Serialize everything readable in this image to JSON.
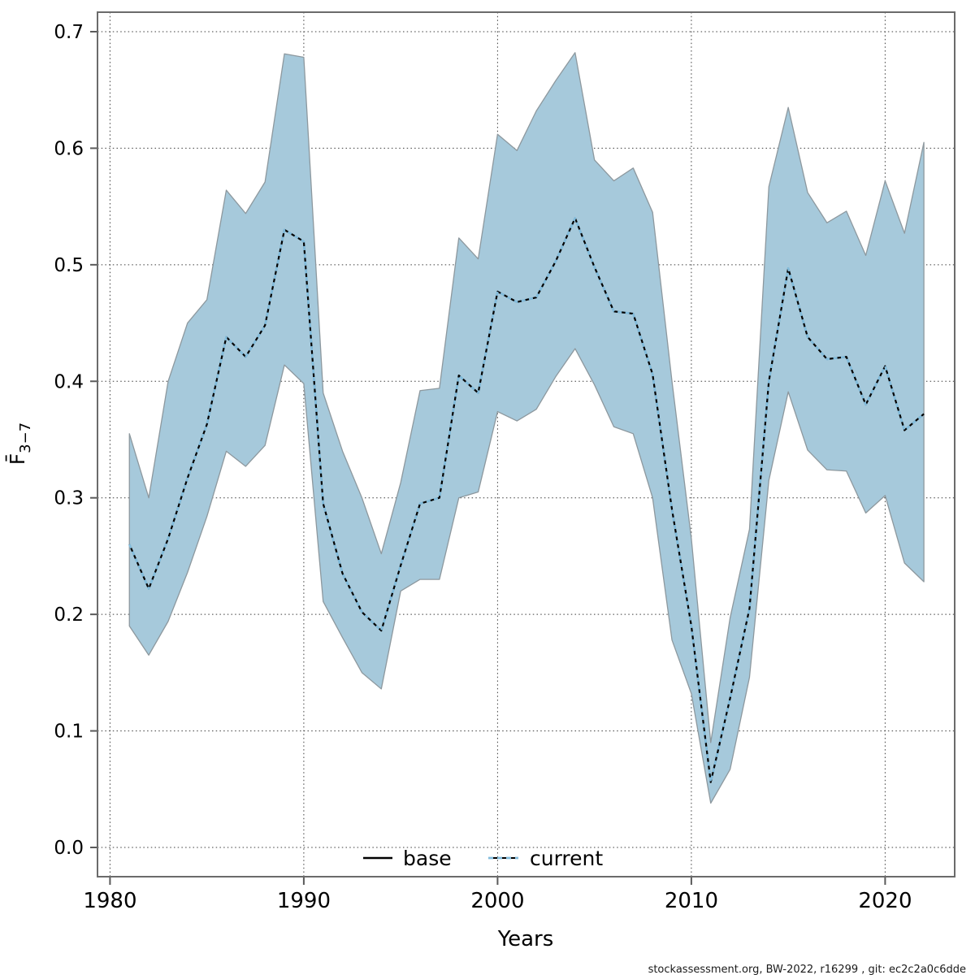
{
  "figure": {
    "footer": "stockassessment.org, BW-2022, r16299 , git: ec2c2a0c6dde",
    "xlabel": "Years",
    "ylabel_main": "F̄",
    "ylabel_sub": "3−7",
    "colors": {
      "band_fill": "#a6c9db",
      "band_edge": "#8d989e",
      "base_line": "#000000",
      "current_line": "#82bcdc",
      "grid": "#3c3c3c",
      "border": "#6b6b6b"
    }
  },
  "chart_data": {
    "type": "line",
    "title": "",
    "xlabel": "Years",
    "ylabel": "F̄3−7",
    "xlim": [
      1979.3,
      2023.6
    ],
    "ylim": [
      0.0,
      0.7
    ],
    "x_ticks": [
      "1980",
      "1990",
      "2000",
      "2010",
      "2020"
    ],
    "x_tick_years": [
      1980,
      1990,
      2000,
      2010,
      2020
    ],
    "y_ticks": [
      "0.0",
      "0.1",
      "0.2",
      "0.3",
      "0.4",
      "0.5",
      "0.6",
      "0.7"
    ],
    "y_tick_values": [
      0.0,
      0.1,
      0.2,
      0.3,
      0.4,
      0.5,
      0.6,
      0.7
    ],
    "grid": "dotted",
    "legend_position": "bottom-center",
    "x": [
      1981,
      1982,
      1983,
      1984,
      1985,
      1986,
      1987,
      1988,
      1989,
      1990,
      1991,
      1992,
      1993,
      1994,
      1995,
      1996,
      1997,
      1998,
      1999,
      2000,
      2001,
      2002,
      2003,
      2004,
      2005,
      2006,
      2007,
      2008,
      2009,
      2010,
      2011,
      2012,
      2013,
      2014,
      2015,
      2016,
      2017,
      2018,
      2019,
      2020,
      2021,
      2022
    ],
    "series": [
      {
        "name": "base",
        "style": "solid",
        "color": "#000000",
        "values": [
          0.26,
          0.222,
          0.265,
          0.317,
          0.363,
          0.438,
          0.421,
          0.448,
          0.53,
          0.52,
          0.295,
          0.235,
          0.202,
          0.186,
          0.242,
          0.295,
          0.3,
          0.405,
          0.39,
          0.477,
          0.468,
          0.472,
          0.503,
          0.54,
          0.498,
          0.46,
          0.458,
          0.406,
          0.29,
          0.19,
          0.056,
          0.128,
          0.205,
          0.4,
          0.497,
          0.438,
          0.419,
          0.421,
          0.38,
          0.413,
          0.358,
          0.372
        ]
      },
      {
        "name": "current",
        "style": "dashed",
        "color": "#82bcdc",
        "values": [
          0.26,
          0.222,
          0.265,
          0.317,
          0.363,
          0.438,
          0.421,
          0.448,
          0.53,
          0.52,
          0.295,
          0.235,
          0.202,
          0.186,
          0.242,
          0.295,
          0.3,
          0.405,
          0.39,
          0.477,
          0.468,
          0.472,
          0.503,
          0.54,
          0.498,
          0.46,
          0.458,
          0.406,
          0.29,
          0.19,
          0.056,
          0.128,
          0.205,
          0.4,
          0.497,
          0.438,
          0.419,
          0.421,
          0.38,
          0.413,
          0.358,
          0.372
        ]
      }
    ],
    "band": {
      "name": "confidence-band",
      "fill": "#a6c9db",
      "edge": "#8d989e",
      "upper": [
        0.355,
        0.3,
        0.4,
        0.45,
        0.47,
        0.564,
        0.544,
        0.571,
        0.681,
        0.678,
        0.39,
        0.34,
        0.3,
        0.252,
        0.313,
        0.392,
        0.394,
        0.523,
        0.505,
        0.612,
        0.598,
        0.632,
        0.658,
        0.682,
        0.59,
        0.572,
        0.583,
        0.545,
        0.4,
        0.265,
        0.09,
        0.197,
        0.273,
        0.567,
        0.635,
        0.562,
        0.536,
        0.546,
        0.508,
        0.572,
        0.527,
        0.605
      ],
      "lower": [
        0.19,
        0.165,
        0.194,
        0.236,
        0.284,
        0.34,
        0.327,
        0.345,
        0.414,
        0.398,
        0.211,
        0.18,
        0.15,
        0.136,
        0.22,
        0.23,
        0.23,
        0.3,
        0.305,
        0.374,
        0.366,
        0.376,
        0.404,
        0.428,
        0.397,
        0.361,
        0.355,
        0.3,
        0.178,
        0.132,
        0.038,
        0.067,
        0.146,
        0.315,
        0.391,
        0.341,
        0.324,
        0.323,
        0.287,
        0.302,
        0.244,
        0.228
      ]
    }
  }
}
